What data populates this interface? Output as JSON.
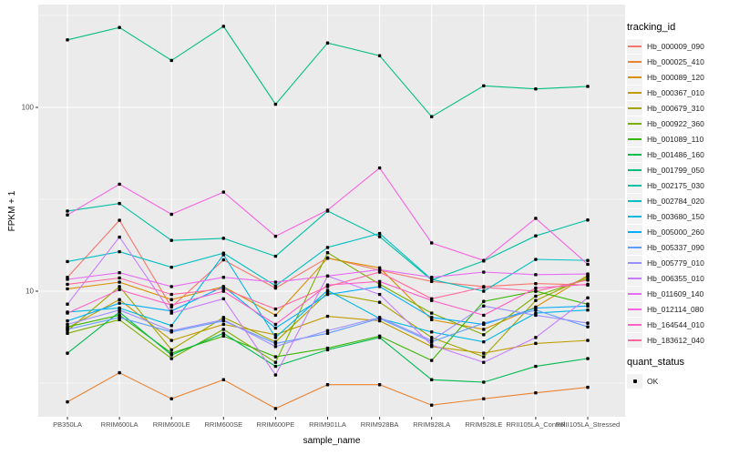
{
  "chart": {
    "y_axis_title": "FPKM + 1",
    "x_axis_title": "sample_name",
    "y_ticks": [
      {
        "label": "100",
        "value": 100
      },
      {
        "label": "10",
        "value": 10
      }
    ]
  },
  "legend": {
    "tracking_title": "tracking_id",
    "quant_title": "quant_status",
    "quant_items": [
      {
        "label": "OK",
        "marker": "black-point"
      }
    ]
  },
  "colors": {
    "panel_background": "#EBEBEB",
    "gridline": "#FFFFFF",
    "marker": "#000000",
    "tick_text": "#4D4D4D",
    "legend_key_background": "#F2F2F2"
  },
  "chart_data": {
    "type": "line",
    "title": "",
    "xlabel": "sample_name",
    "ylabel": "FPKM + 1",
    "y_scale": "log10",
    "ylim": [
      2.1,
      360
    ],
    "grid": true,
    "legend_position": "right",
    "point_marker": "black point (quant_status = OK)",
    "x": [
      "PB350LA",
      "RRIM600LA",
      "RRIM600LE",
      "RRIM600SE",
      "RRIM600PE",
      "RRIM901LA",
      "RRIM928BA",
      "RRIM928LA",
      "RRIM928LE",
      "RRII105LA_Control",
      "RRII105LA_Stressed"
    ],
    "series": [
      {
        "name": "Hb_000009_090",
        "color": "#F8766D",
        "values": [
          11.9,
          24.3,
          8.2,
          14.8,
          10.4,
          15.2,
          13.0,
          11.3,
          10.6,
          11.0,
          10.8
        ]
      },
      {
        "name": "Hb_000025_410",
        "color": "#EA8331",
        "values": [
          2.5,
          3.6,
          2.6,
          3.3,
          2.3,
          3.1,
          3.1,
          2.4,
          2.6,
          2.8,
          3.0
        ]
      },
      {
        "name": "Hb_000089_120",
        "color": "#D89000",
        "values": [
          10.3,
          11.2,
          9.0,
          10.6,
          7.4,
          15.1,
          13.4,
          7.0,
          6.2,
          8.2,
          12.2
        ]
      },
      {
        "name": "Hb_000367_010",
        "color": "#C09B00",
        "values": [
          6.3,
          9.0,
          5.4,
          6.6,
          5.8,
          7.3,
          6.9,
          5.0,
          4.6,
          5.2,
          5.4
        ]
      },
      {
        "name": "Hb_000679_310",
        "color": "#A3A500",
        "values": [
          6.1,
          10.6,
          4.8,
          7.2,
          5.3,
          9.8,
          8.7,
          5.6,
          4.4,
          8.9,
          12.0
        ]
      },
      {
        "name": "Hb_000922_360",
        "color": "#7CAE00",
        "values": [
          5.9,
          7.0,
          4.3,
          6.2,
          4.1,
          16.2,
          10.9,
          7.6,
          5.8,
          9.4,
          11.7
        ]
      },
      {
        "name": "Hb_001089_110",
        "color": "#39B600",
        "values": [
          6.4,
          7.4,
          4.6,
          5.7,
          4.4,
          4.9,
          5.7,
          4.2,
          8.8,
          10.0,
          8.5
        ]
      },
      {
        "name": "Hb_001486_160",
        "color": "#00BB4E",
        "values": [
          4.6,
          7.7,
          4.5,
          5.9,
          3.9,
          4.8,
          5.6,
          3.3,
          3.2,
          3.9,
          4.3
        ]
      },
      {
        "name": "Hb_001799_050",
        "color": "#00BF7D",
        "values": [
          233,
          272,
          180,
          276,
          104,
          224,
          191,
          89,
          131,
          126,
          130
        ]
      },
      {
        "name": "Hb_002175_030",
        "color": "#00C1A3",
        "values": [
          27.3,
          30.0,
          18.9,
          19.4,
          15.5,
          27.3,
          19.8,
          11.5,
          14.6,
          20.0,
          24.4
        ]
      },
      {
        "name": "Hb_002784_020",
        "color": "#00BFC4",
        "values": [
          14.5,
          16.4,
          13.5,
          16.1,
          10.7,
          17.3,
          20.6,
          11.6,
          10.0,
          14.9,
          14.7
        ]
      },
      {
        "name": "Hb_003680_150",
        "color": "#00B8E5",
        "values": [
          7.7,
          8.1,
          6.5,
          15.8,
          5.6,
          10.1,
          7.1,
          6.0,
          5.3,
          7.6,
          7.9
        ]
      },
      {
        "name": "Hb_005000_260",
        "color": "#00ACFC",
        "values": [
          6.9,
          8.6,
          7.8,
          10.6,
          6.3,
          9.6,
          10.6,
          7.2,
          6.6,
          8.1,
          8.3
        ]
      },
      {
        "name": "Hb_005337_090",
        "color": "#619CFF",
        "values": [
          6.2,
          7.2,
          6.0,
          6.9,
          5.2,
          5.9,
          7.1,
          5.3,
          6.7,
          7.9,
          6.4
        ]
      },
      {
        "name": "Hb_005779_010",
        "color": "#9B8FFF",
        "values": [
          6.6,
          7.9,
          6.1,
          7.0,
          5.0,
          6.1,
          7.2,
          5.4,
          8.3,
          7.4,
          6.7
        ]
      },
      {
        "name": "Hb_006355_010",
        "color": "#C77CFF",
        "values": [
          8.5,
          19.7,
          7.6,
          9.1,
          3.5,
          12.1,
          9.6,
          5.1,
          4.1,
          5.6,
          9.2
        ]
      },
      {
        "name": "Hb_011609_140",
        "color": "#E76BF3",
        "values": [
          11.6,
          12.6,
          10.6,
          11.9,
          11.2,
          12.1,
          13.1,
          11.9,
          12.7,
          12.3,
          12.4
        ]
      },
      {
        "name": "Hb_012114_080",
        "color": "#F763E0",
        "values": [
          26.0,
          38.2,
          26.2,
          34.6,
          19.9,
          27.6,
          46.8,
          18.3,
          14.7,
          24.9,
          14.0
        ]
      },
      {
        "name": "Hb_164544_010",
        "color": "#FF61C7",
        "values": [
          7.6,
          10.2,
          8.4,
          10.0,
          6.6,
          10.8,
          11.3,
          8.9,
          7.4,
          10.4,
          10.9
        ]
      },
      {
        "name": "Hb_183612_040",
        "color": "#FF689F",
        "values": [
          10.9,
          11.8,
          9.6,
          10.3,
          8.0,
          10.6,
          12.7,
          9.1,
          10.5,
          10.0,
          11.5
        ]
      }
    ]
  }
}
